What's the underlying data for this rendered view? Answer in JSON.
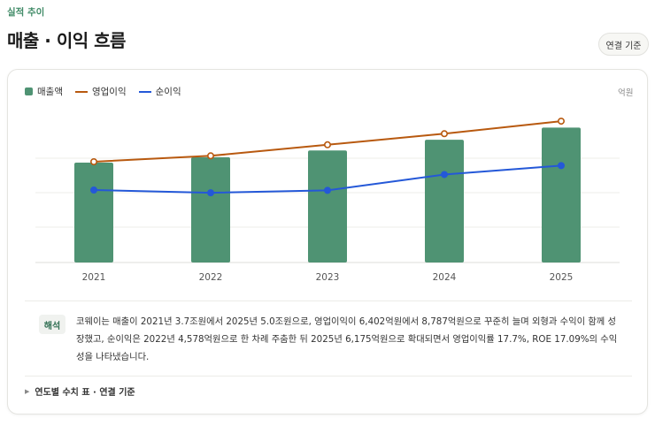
{
  "header": {
    "eyebrow": "실적 추이",
    "title": "매출 · 이익 흐름",
    "basis_button": "연결 기준"
  },
  "legend": {
    "items": [
      {
        "label": "매출액",
        "kind": "bar",
        "color": "#4f9373"
      },
      {
        "label": "영업이익",
        "kind": "line",
        "color": "#b8590f"
      },
      {
        "label": "순이익",
        "kind": "line",
        "color": "#2458d8"
      }
    ],
    "unit": "억원"
  },
  "chart_data": {
    "type": "bar",
    "categories": [
      "2021",
      "2022",
      "2023",
      "2024",
      "2025"
    ],
    "series": [
      {
        "name": "매출액",
        "type": "bar",
        "color": "#4f9373",
        "values": [
          37000,
          39000,
          41500,
          45500,
          50000
        ]
      },
      {
        "name": "영업이익",
        "type": "line",
        "color": "#b8590f",
        "values": [
          6402,
          6750,
          7400,
          8050,
          8787
        ]
      },
      {
        "name": "순이익",
        "type": "line",
        "color": "#2458d8",
        "values": [
          4740,
          4578,
          4720,
          5650,
          6175
        ]
      }
    ],
    "title": "",
    "xlabel": "",
    "ylabel": "억원",
    "grid": true
  },
  "interpretation": {
    "tag": "해석",
    "text": "코웨이는 매출이 2021년 3.7조원에서 2025년 5.0조원으로, 영업이익이 6,402억원에서 8,787억원으로 꾸준히 늘며 외형과 수익이 함께 성장했고, 순이익은 2022년 4,578억원으로 한 차례 주춤한 뒤 2025년 6,175억원으로 확대되면서 영업이익률 17.7%, ROE 17.09%의 수익성을 나타냈습니다."
  },
  "details": {
    "label": "연도별 수치 표 · 연결 기준"
  }
}
